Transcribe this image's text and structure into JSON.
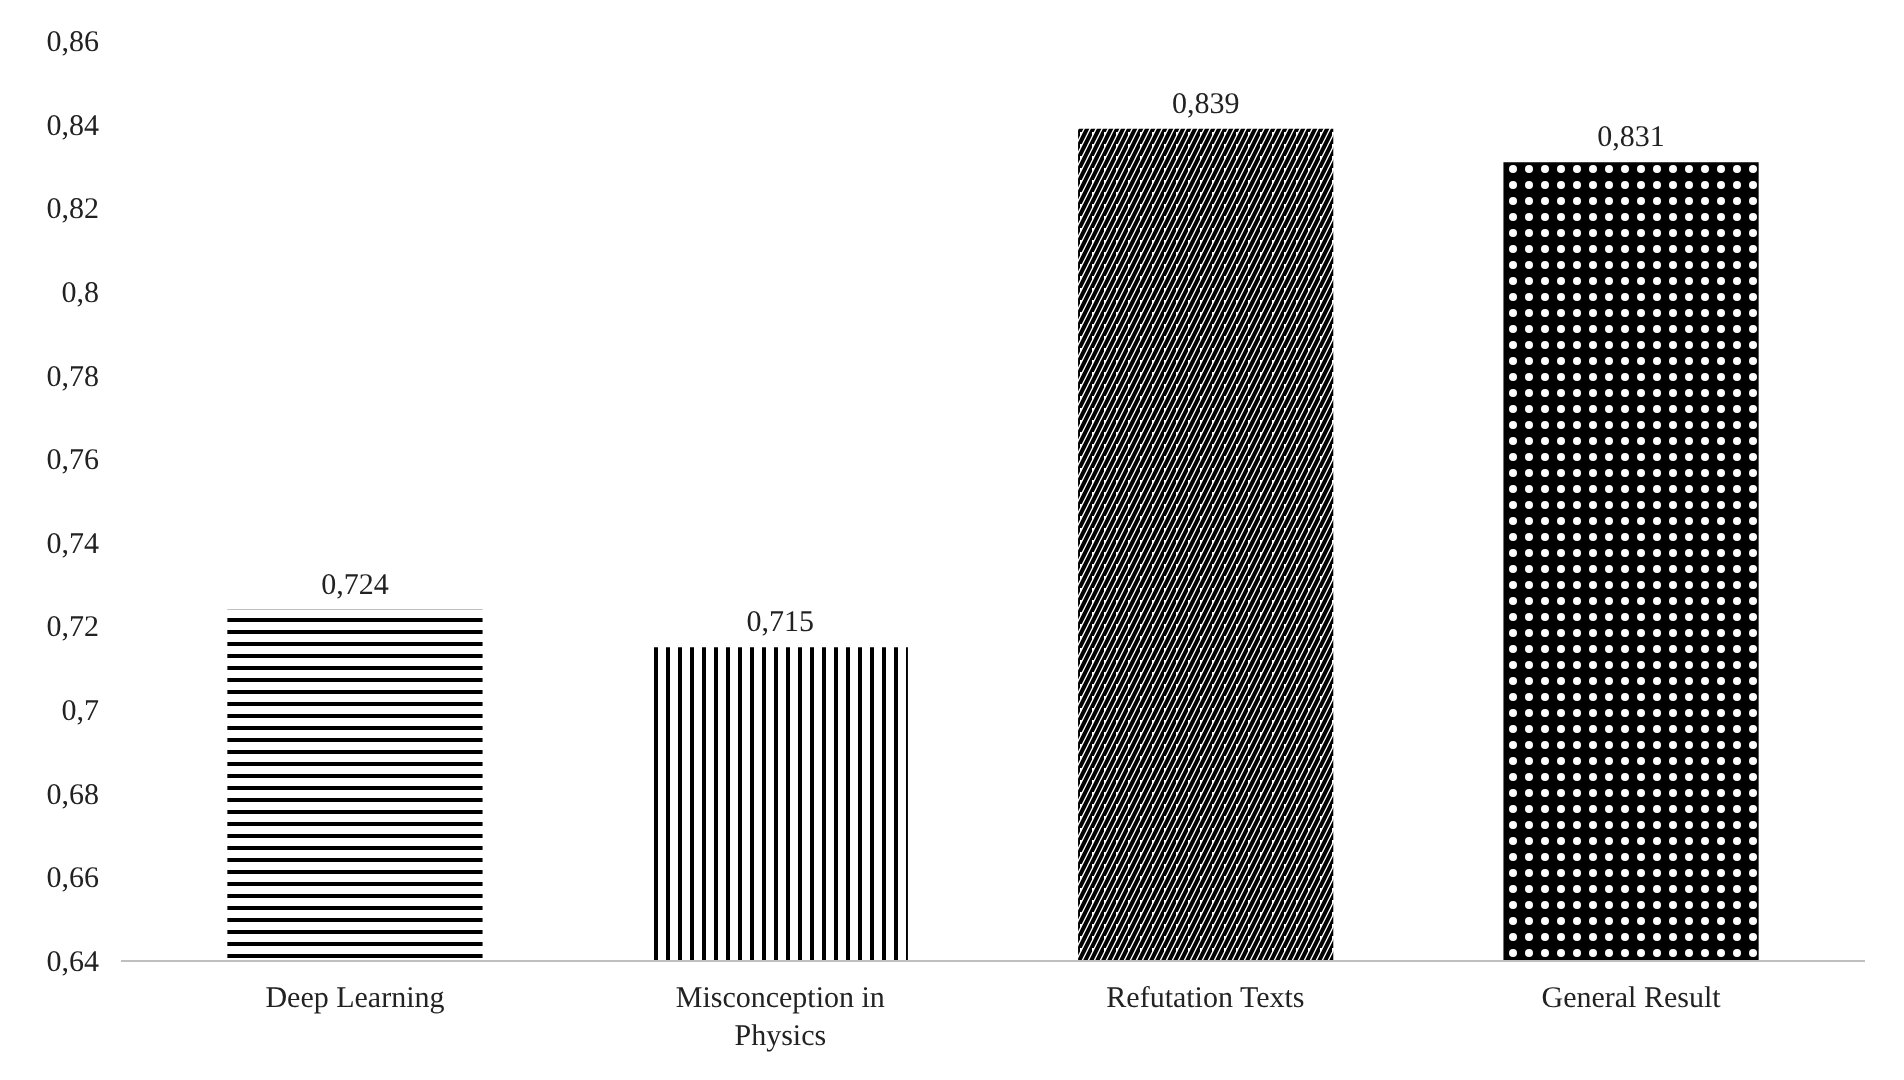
{
  "chart_data": {
    "type": "bar",
    "categories": [
      "Deep Learning",
      "Misconception in Physics",
      "Refutation Texts",
      "General Result"
    ],
    "values": [
      0.724,
      0.715,
      0.839,
      0.831
    ],
    "value_labels": [
      "0,724",
      "0,715",
      "0,839",
      "0,831"
    ],
    "color": "#000000",
    "ylim": [
      0.64,
      0.86
    ],
    "yticks": [
      {
        "value": 0.64,
        "label": "0,64"
      },
      {
        "value": 0.66,
        "label": "0,66"
      },
      {
        "value": 0.68,
        "label": "0,68"
      },
      {
        "value": 0.7,
        "label": "0,7"
      },
      {
        "value": 0.72,
        "label": "0,72"
      },
      {
        "value": 0.74,
        "label": "0,74"
      },
      {
        "value": 0.76,
        "label": "0,76"
      },
      {
        "value": 0.78,
        "label": "0,78"
      },
      {
        "value": 0.8,
        "label": "0,8"
      },
      {
        "value": 0.82,
        "label": "0,82"
      },
      {
        "value": 0.84,
        "label": "0,84"
      },
      {
        "value": 0.86,
        "label": "0,86"
      }
    ],
    "grid": false
  }
}
